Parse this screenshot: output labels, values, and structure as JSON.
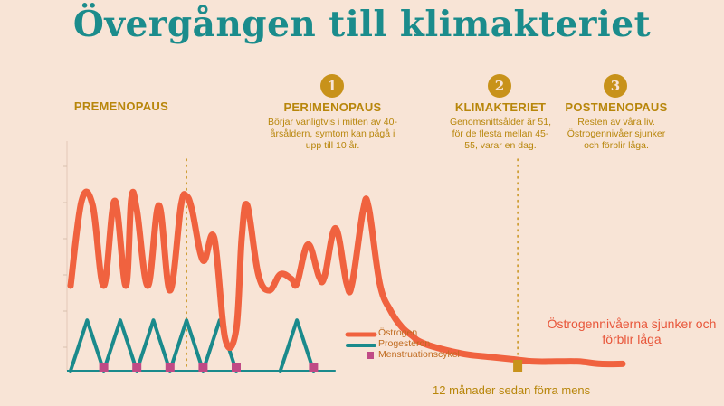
{
  "title": "Övergången till klimakteriet",
  "phases": {
    "pre": {
      "name": "PREMENOPAUS"
    },
    "peri": {
      "badge": "1",
      "name": "PERIMENOPAUS",
      "desc": "Börjar vanligtvis i mitten av 40-årsåldern, symtom kan pågå i upp till 10 år."
    },
    "klim": {
      "badge": "2",
      "name": "KLIMAKTERIET",
      "desc": "Genomsnittsålder är 51, för de flesta mellan 45-55, varar en dag."
    },
    "post": {
      "badge": "3",
      "name": "POSTMENOPAUS",
      "desc": "Resten av våra liv. Östrogennivåer sjunker och förblir låga."
    }
  },
  "legend": {
    "estrogen": "Östrogen",
    "progesterone": "Progesteron",
    "menstruation": "Menstruationscykel"
  },
  "note": "Östrogennivåerna sjunker och förblir låga",
  "footer": "12 månader sedan förra mens",
  "colors": {
    "background": "#f8e4d6",
    "title": "#1b8c8c",
    "estrogen": "#f0623f",
    "progesterone": "#1a8a8c",
    "menstruation": "#c04a86",
    "gold": "#c8921a"
  },
  "chart_data": {
    "type": "line",
    "title": "Övergången till klimakteriet",
    "xlabel": "",
    "ylabel": "",
    "xlim": [
      0,
      100
    ],
    "ylim": [
      0,
      100
    ],
    "grid": false,
    "legend_position": "bottom-center",
    "series": [
      {
        "name": "Östrogen",
        "x": [
          0,
          2,
          4,
          6,
          8,
          10,
          11,
          12,
          14,
          16,
          18,
          20,
          21,
          22,
          24,
          26,
          28,
          30,
          31,
          32,
          34,
          36,
          38,
          40,
          41,
          43,
          45,
          46,
          48,
          50,
          51,
          53,
          54,
          56,
          58,
          60,
          62,
          63,
          65,
          68,
          72,
          76,
          80,
          84,
          88,
          92,
          96,
          100
        ],
        "y": [
          37,
          74,
          72,
          37,
          74,
          37,
          75,
          70,
          37,
          72,
          35,
          72,
          76,
          70,
          48,
          58,
          14,
          18,
          58,
          72,
          42,
          35,
          42,
          40,
          38,
          55,
          41,
          41,
          62,
          38,
          38,
          70,
          71,
          38,
          26,
          19,
          15,
          13,
          11,
          9,
          7,
          6,
          5,
          4,
          4,
          4,
          3,
          3
        ]
      },
      {
        "name": "Progesteron",
        "x": [
          0,
          3,
          6,
          9,
          12,
          15,
          18,
          21,
          24,
          27,
          30,
          38,
          41,
          44
        ],
        "y": [
          0,
          22,
          0,
          22,
          0,
          22,
          0,
          22,
          0,
          22,
          0,
          0,
          22,
          0
        ]
      },
      {
        "name": "Menstruationscykel",
        "x": [
          6,
          12,
          18,
          24,
          30,
          44
        ],
        "y": [
          0,
          0,
          0,
          0,
          0,
          0
        ]
      }
    ],
    "annotations": [
      {
        "x": 21,
        "label": ""
      },
      {
        "x": 81,
        "label": "12 månader sedan förra mens"
      }
    ]
  }
}
